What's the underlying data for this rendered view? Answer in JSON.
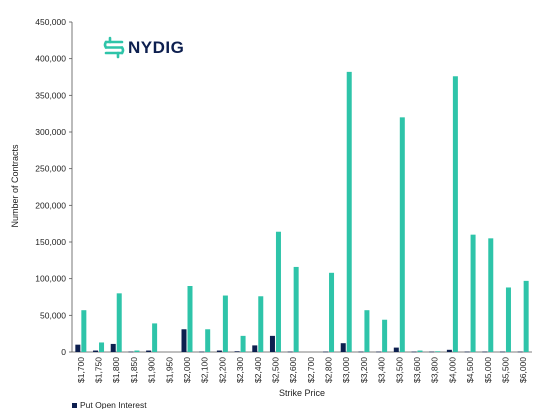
{
  "brand": {
    "name": "NYDIG",
    "icon": "nydig-logo-icon",
    "color": "#2ec4a9"
  },
  "chart_data": {
    "type": "bar",
    "title": "",
    "xlabel": "Strike Price",
    "ylabel": "Number of Contracts",
    "ylim": [
      0,
      450000
    ],
    "yticks": [
      0,
      50000,
      100000,
      150000,
      200000,
      250000,
      300000,
      350000,
      400000,
      450000
    ],
    "ytick_labels": [
      "0",
      "50,000",
      "100,000",
      "150,000",
      "200,000",
      "250,000",
      "300,000",
      "350,000",
      "400,000",
      "450,000"
    ],
    "grid": false,
    "legend_position": "bottom-left",
    "categories": [
      "$1,700",
      "$1,750",
      "$1,800",
      "$1,850",
      "$1,900",
      "$1,950",
      "$2,000",
      "$2,100",
      "$2,200",
      "$2,300",
      "$2,400",
      "$2,500",
      "$2,600",
      "$2,700",
      "$2,800",
      "$3,000",
      "$3,200",
      "$3,400",
      "$3,500",
      "$3,600",
      "$3,800",
      "$4,000",
      "$4,500",
      "$5,000",
      "$5,500",
      "$6,000"
    ],
    "series": [
      {
        "name": "Put Open Interest",
        "color": "#0d1f4f",
        "values": [
          10000,
          2000,
          11000,
          500,
          2000,
          0,
          31000,
          500,
          2000,
          1000,
          9000,
          22000,
          500,
          0,
          500,
          12000,
          500,
          500,
          6000,
          500,
          500,
          3000,
          500,
          500,
          500,
          500
        ]
      },
      {
        "name": "",
        "color": "#2ec4a9",
        "values": [
          57000,
          13000,
          80000,
          2000,
          39000,
          0,
          90000,
          31000,
          77000,
          22000,
          76000,
          164000,
          116000,
          0,
          108000,
          382000,
          57000,
          44000,
          320000,
          2000,
          1000,
          376000,
          160000,
          155000,
          88000,
          97000
        ]
      }
    ]
  }
}
